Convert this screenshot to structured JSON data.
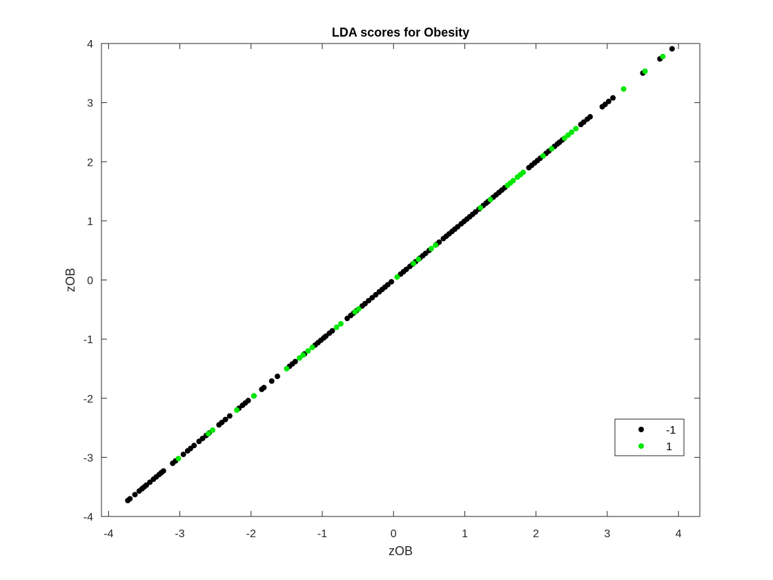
{
  "chart_data": {
    "type": "scatter",
    "title": "LDA scores for Obesity",
    "xlabel": "zOB",
    "ylabel": "zOB",
    "xlim": [
      -4.1,
      4.3
    ],
    "ylim": [
      -4,
      4
    ],
    "xticks": [
      -4,
      -3,
      -2,
      -1,
      0,
      1,
      2,
      3,
      4
    ],
    "yticks": [
      -4,
      -3,
      -2,
      -1,
      0,
      1,
      2,
      3,
      4
    ],
    "x_tick_labels": [
      "-4",
      "-3",
      "-2",
      "-1",
      "0",
      "1",
      "2",
      "3",
      "4"
    ],
    "y_tick_labels": [
      "-4",
      "-3",
      "-2",
      "-1",
      "0",
      "1",
      "2",
      "3",
      "4"
    ],
    "grid": false,
    "legend_position": "bottom-right",
    "series": [
      {
        "name": "-1",
        "color": "#000000",
        "x": [
          -3.73,
          -3.7,
          -3.63,
          -3.57,
          -3.53,
          -3.5,
          -3.47,
          -3.42,
          -3.37,
          -3.33,
          -3.29,
          -3.26,
          -3.23,
          -3.1,
          -3.06,
          -2.95,
          -2.89,
          -2.85,
          -2.8,
          -2.73,
          -2.68,
          -2.63,
          -2.59,
          -2.45,
          -2.41,
          -2.36,
          -2.3,
          -2.17,
          -2.12,
          -2.08,
          -2.04,
          -1.96,
          -1.85,
          -1.82,
          -1.71,
          -1.63,
          -1.46,
          -1.42,
          -1.38,
          -1.25,
          -1.1,
          -1.06,
          -1.02,
          -0.98,
          -0.95,
          -0.9,
          -0.86,
          -0.65,
          -0.6,
          -0.56,
          -0.52,
          -0.44,
          -0.4,
          -0.35,
          -0.3,
          -0.25,
          -0.2,
          -0.16,
          -0.12,
          -0.08,
          -0.03,
          0.1,
          0.14,
          0.18,
          0.23,
          0.27,
          0.31,
          0.37,
          0.41,
          0.45,
          0.5,
          0.6,
          0.64,
          0.7,
          0.74,
          0.78,
          0.82,
          0.86,
          0.9,
          0.95,
          0.99,
          1.03,
          1.07,
          1.11,
          1.15,
          1.2,
          1.26,
          1.3,
          1.33,
          1.4,
          1.44,
          1.48,
          1.52,
          1.56,
          1.9,
          1.94,
          1.98,
          2.02,
          2.06,
          2.14,
          2.18,
          2.26,
          2.3,
          2.33,
          2.37,
          2.63,
          2.67,
          2.72,
          2.76,
          2.93,
          2.97,
          3.02,
          3.08,
          3.5,
          3.74,
          3.91
        ],
        "y": [
          -3.73,
          -3.7,
          -3.63,
          -3.57,
          -3.53,
          -3.5,
          -3.47,
          -3.42,
          -3.37,
          -3.33,
          -3.29,
          -3.26,
          -3.23,
          -3.1,
          -3.06,
          -2.95,
          -2.89,
          -2.85,
          -2.8,
          -2.73,
          -2.68,
          -2.63,
          -2.59,
          -2.45,
          -2.41,
          -2.36,
          -2.3,
          -2.17,
          -2.12,
          -2.08,
          -2.04,
          -1.96,
          -1.85,
          -1.82,
          -1.71,
          -1.63,
          -1.46,
          -1.42,
          -1.38,
          -1.25,
          -1.1,
          -1.06,
          -1.02,
          -0.98,
          -0.95,
          -0.9,
          -0.86,
          -0.65,
          -0.6,
          -0.56,
          -0.52,
          -0.44,
          -0.4,
          -0.35,
          -0.3,
          -0.25,
          -0.2,
          -0.16,
          -0.12,
          -0.08,
          -0.03,
          0.1,
          0.14,
          0.18,
          0.23,
          0.27,
          0.31,
          0.37,
          0.41,
          0.45,
          0.5,
          0.6,
          0.64,
          0.7,
          0.74,
          0.78,
          0.82,
          0.86,
          0.9,
          0.95,
          0.99,
          1.03,
          1.07,
          1.11,
          1.15,
          1.2,
          1.26,
          1.3,
          1.33,
          1.4,
          1.44,
          1.48,
          1.52,
          1.56,
          1.9,
          1.94,
          1.98,
          2.02,
          2.06,
          2.14,
          2.18,
          2.26,
          2.3,
          2.33,
          2.37,
          2.63,
          2.67,
          2.72,
          2.76,
          2.93,
          2.97,
          3.02,
          3.08,
          3.5,
          3.74,
          3.91
        ]
      },
      {
        "name": "1",
        "color": "#00e600",
        "x": [
          -3.02,
          -2.6,
          -2.54,
          -2.2,
          -1.96,
          -1.5,
          -1.32,
          -1.27,
          -1.2,
          -1.14,
          -0.8,
          -0.74,
          -0.54,
          -0.49,
          0.05,
          0.28,
          0.35,
          0.53,
          0.59,
          1.22,
          1.36,
          1.6,
          1.64,
          1.68,
          1.74,
          1.78,
          1.82,
          2.1,
          2.22,
          2.4,
          2.45,
          2.5,
          2.56,
          3.23,
          3.53,
          3.78
        ],
        "y": [
          -3.02,
          -2.6,
          -2.54,
          -2.2,
          -1.96,
          -1.5,
          -1.32,
          -1.27,
          -1.2,
          -1.14,
          -0.8,
          -0.74,
          -0.54,
          -0.49,
          0.05,
          0.28,
          0.35,
          0.53,
          0.59,
          1.22,
          1.36,
          1.6,
          1.64,
          1.68,
          1.74,
          1.78,
          1.82,
          2.1,
          2.22,
          2.4,
          2.45,
          2.5,
          2.56,
          3.23,
          3.53,
          3.78
        ]
      }
    ]
  }
}
